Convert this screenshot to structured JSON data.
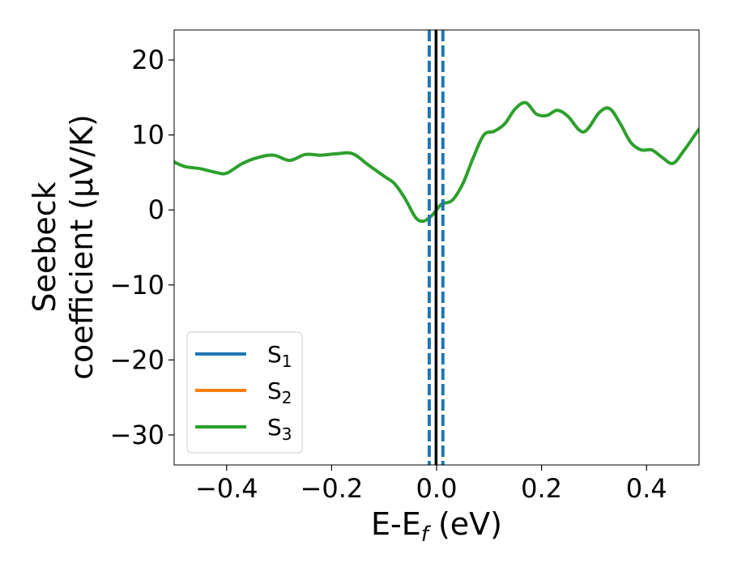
{
  "chart_data": {
    "type": "line",
    "title": "",
    "xlabel": {
      "base": "E-E",
      "sub": "f",
      "rest": " (eV)"
    },
    "ylabel": {
      "line1": "Seebeck",
      "line2": "coefficient  (μV/K)"
    },
    "xlim": [
      -0.5,
      0.5
    ],
    "ylim": [
      -34,
      24
    ],
    "x_ticks": [
      -0.4,
      -0.2,
      0.0,
      0.2,
      0.4
    ],
    "x_tick_labels": [
      "−0.4",
      "−0.2",
      "0.0",
      "0.2",
      "0.4"
    ],
    "y_ticks": [
      -30,
      -20,
      -10,
      0,
      10,
      20
    ],
    "y_tick_labels": [
      "−30",
      "−20",
      "−10",
      "0",
      "10",
      "20"
    ],
    "grid": false,
    "legend_position": "lower-left",
    "series": [
      {
        "name": "S",
        "sub": "1",
        "color": "#1f77b4",
        "x": [],
        "y": []
      },
      {
        "name": "S",
        "sub": "2",
        "color": "#ff7f0e",
        "x": [],
        "y": []
      },
      {
        "name": "S",
        "sub": "3",
        "color": "#2ca02c",
        "x": [
          -0.5,
          -0.48,
          -0.45,
          -0.42,
          -0.4,
          -0.37,
          -0.34,
          -0.31,
          -0.28,
          -0.25,
          -0.22,
          -0.19,
          -0.16,
          -0.13,
          -0.1,
          -0.08,
          -0.06,
          -0.04,
          -0.025,
          -0.01,
          0.0,
          0.01,
          0.03,
          0.05,
          0.07,
          0.09,
          0.11,
          0.13,
          0.15,
          0.17,
          0.19,
          0.21,
          0.23,
          0.25,
          0.28,
          0.31,
          0.33,
          0.35,
          0.37,
          0.39,
          0.41,
          0.43,
          0.45,
          0.47,
          0.5
        ],
        "y": [
          6.4,
          5.8,
          5.5,
          5.0,
          4.9,
          6.2,
          7.0,
          7.3,
          6.6,
          7.4,
          7.3,
          7.5,
          7.5,
          6.0,
          4.5,
          3.5,
          1.5,
          -1.0,
          -1.5,
          -0.8,
          0.0,
          0.8,
          1.3,
          3.5,
          7.0,
          10.0,
          10.5,
          11.5,
          13.5,
          14.3,
          12.8,
          12.6,
          13.3,
          12.5,
          10.4,
          13.0,
          13.5,
          11.5,
          9.0,
          8.0,
          8.0,
          7.0,
          6.2,
          7.8,
          10.8
        ]
      }
    ],
    "vertical_lines": [
      {
        "x": -0.014,
        "style": "dashed",
        "color": "#1f77b4"
      },
      {
        "x": 0.012,
        "style": "dashed",
        "color": "#1f77b4"
      },
      {
        "x": -0.001,
        "style": "solid",
        "color": "#000000"
      }
    ]
  }
}
